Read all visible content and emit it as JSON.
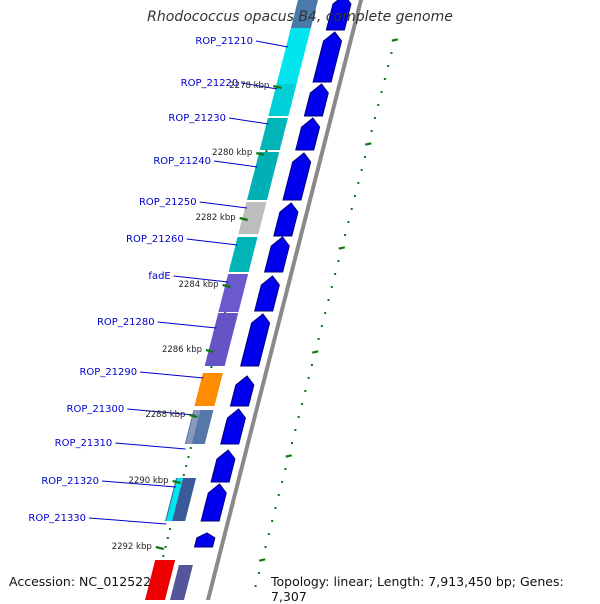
{
  "title": "Rhodococcus opacus B4, complete genome",
  "footer": {
    "accession": "Accession: NC_012522",
    "summary": "Topology: linear; Length: 7,913,450 bp; Genes: 7,307"
  },
  "colors": {
    "arrow_blue": "#0000ee",
    "arrow_outline": "#00007a",
    "label_blue": "#0000cc",
    "tick_green": "#117711",
    "backbone_gray": "#8a8a8a",
    "cyan": "#00e5ee",
    "teal": "#00b4b8",
    "gray": "#bdbdbd",
    "slate_blue": "#6a5acd",
    "orange": "#ff8c00",
    "red": "#ee0000",
    "purple": "#555599"
  },
  "gene_labels": [
    "ROP_21210",
    "ROP_21220",
    "ROP_21230",
    "ROP_21240",
    "ROP_21250",
    "ROP_21260",
    "fadE",
    "ROP_21280",
    "ROP_21290",
    "ROP_21300",
    "ROP_21310",
    "ROP_21320",
    "ROP_21330"
  ],
  "kbp_labels": [
    "2278 kbp",
    "2280 kbp",
    "2282 kbp",
    "2284 kbp",
    "2286 kbp",
    "2288 kbp",
    "2290 kbp",
    "2292 kbp"
  ]
}
